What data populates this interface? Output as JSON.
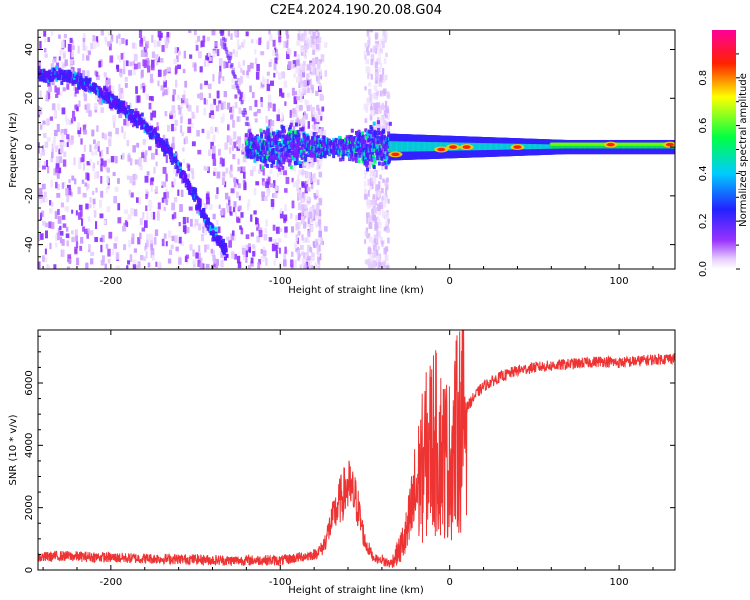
{
  "chart_data": [
    {
      "type": "heatmap",
      "title": "C2E4.2024.190.20.08.G04",
      "xlabel": "Height of straight line (km)",
      "ylabel": "Frequency (Hz)",
      "xlim": [
        -243,
        133
      ],
      "ylim": [
        -50,
        48
      ],
      "xticks": [
        -200,
        -100,
        0,
        100
      ],
      "yticks": [
        -40,
        -20,
        0,
        20,
        40
      ],
      "colorbar": {
        "label": "Normalized spectral amplitude",
        "range": [
          0,
          1
        ],
        "ticks": [
          "0.0",
          "0.2",
          "0.4",
          "0.6",
          "0.8"
        ],
        "tick_values": [
          0,
          0.2,
          0.4,
          0.6,
          0.8
        ]
      },
      "features": {
        "curved_track": [
          [
            -243,
            30
          ],
          [
            -225,
            29
          ],
          [
            -210,
            24
          ],
          [
            -195,
            17
          ],
          [
            -180,
            9
          ],
          [
            -165,
            -2
          ],
          [
            -152,
            -18
          ],
          [
            -142,
            -32
          ],
          [
            -132,
            -43
          ]
        ],
        "horizontal_track_start_x": -120,
        "horizontal_track_freq": 0,
        "hot_spots": [
          [
            -32,
            -3
          ],
          [
            -5,
            -1
          ],
          [
            2,
            0
          ],
          [
            10,
            0
          ],
          [
            40,
            0
          ],
          [
            95,
            1
          ],
          [
            130,
            1
          ]
        ]
      }
    },
    {
      "type": "line",
      "xlabel": "Height of straight line (km)",
      "ylabel": "SNR (10 * v/v)",
      "xlim": [
        -243,
        133
      ],
      "ylim": [
        0,
        7700
      ],
      "xticks": [
        -200,
        -100,
        0,
        100
      ],
      "yticks": [
        0,
        2000,
        4000,
        6000
      ],
      "color": "#ee3333",
      "series": [
        {
          "x": [
            -243,
            -230,
            -210,
            -190,
            -170,
            -150,
            -130,
            -110,
            -100,
            -90,
            -80,
            -75,
            -70,
            -65,
            -60,
            -55,
            -50,
            -45,
            -40,
            -35,
            -30,
            -25,
            -20,
            -15,
            -10,
            -5,
            0,
            5,
            10,
            15,
            20,
            30,
            40,
            50,
            60,
            70,
            80,
            90,
            100,
            110,
            120,
            133
          ],
          "values": [
            400,
            450,
            420,
            380,
            360,
            340,
            300,
            320,
            300,
            400,
            500,
            700,
            1500,
            2200,
            2700,
            2200,
            900,
            400,
            300,
            200,
            600,
            1200,
            2500,
            3500,
            4200,
            3800,
            3500,
            4500,
            5200,
            5600,
            5900,
            6200,
            6400,
            6500,
            6550,
            6600,
            6650,
            6700,
            6650,
            6700,
            6750,
            6800
          ]
        }
      ]
    }
  ]
}
